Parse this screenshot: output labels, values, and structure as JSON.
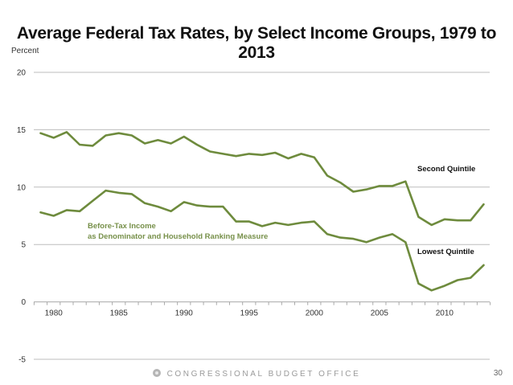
{
  "chart_data": {
    "type": "line",
    "title": "Average Federal Tax Rates, by Select Income Groups, 1979 to 2013",
    "xlabel": "",
    "ylabel": "Percent",
    "ylim": [
      -5,
      20
    ],
    "xlim": [
      1979,
      2013
    ],
    "yticks": [
      20,
      15,
      10,
      5,
      0,
      -5
    ],
    "xticks": [
      1980,
      1985,
      1990,
      1995,
      2000,
      2005,
      2010
    ],
    "grid": true,
    "x": [
      1979,
      1980,
      1981,
      1982,
      1983,
      1984,
      1985,
      1986,
      1987,
      1988,
      1989,
      1990,
      1991,
      1992,
      1993,
      1994,
      1995,
      1996,
      1997,
      1998,
      1999,
      2000,
      2001,
      2002,
      2003,
      2004,
      2005,
      2006,
      2007,
      2008,
      2009,
      2010,
      2011,
      2012,
      2013
    ],
    "series": [
      {
        "name": "Second Quintile",
        "values": [
          14.7,
          14.3,
          14.8,
          13.7,
          13.6,
          14.5,
          14.7,
          14.5,
          13.8,
          14.1,
          13.8,
          14.4,
          13.7,
          13.1,
          12.9,
          12.7,
          12.9,
          12.8,
          13.0,
          12.5,
          12.9,
          12.6,
          11.0,
          10.4,
          9.6,
          9.8,
          10.1,
          10.1,
          10.5,
          7.4,
          6.7,
          7.2,
          7.1,
          7.1,
          8.5
        ],
        "color": "#6e8b3d"
      },
      {
        "name": "Lowest Quintile",
        "values": [
          7.8,
          7.5,
          8.0,
          7.9,
          8.8,
          9.7,
          9.5,
          9.4,
          8.6,
          8.3,
          7.9,
          8.7,
          8.4,
          8.3,
          8.3,
          7.0,
          7.0,
          6.6,
          6.9,
          6.7,
          6.9,
          7.0,
          5.9,
          5.6,
          5.5,
          5.2,
          5.6,
          5.9,
          5.2,
          1.6,
          1.0,
          1.4,
          1.9,
          2.1,
          3.2
        ],
        "color": "#6e8b3d"
      }
    ],
    "annotations": [
      {
        "text": "Second Quintile",
        "near": "2009-2012, above second quintile line"
      },
      {
        "text": "Lowest Quintile",
        "near": "2009-2012, above lowest quintile line"
      },
      {
        "text": "Before-Tax Income",
        "near": "1983, below lowest quintile line"
      },
      {
        "text": "as Denominator and Household Ranking Measure",
        "near": "1983, below lowest quintile line"
      }
    ],
    "legend": "none"
  },
  "footer": {
    "organization": "CONGRESSIONAL BUDGET OFFICE",
    "page_number": "30"
  },
  "colors": {
    "line": "#6e8b3d",
    "annotation_green": "#77904a",
    "grid": "#bdbdbd"
  }
}
